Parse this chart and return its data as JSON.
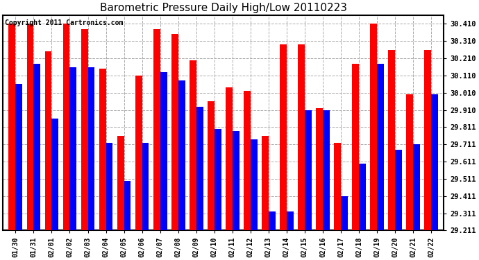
{
  "title": "Barometric Pressure Daily High/Low 20110223",
  "copyright_text": "Copyright 2011 Cartronics.com",
  "dates": [
    "01/30",
    "01/31",
    "02/01",
    "02/02",
    "02/03",
    "02/04",
    "02/05",
    "02/06",
    "02/07",
    "02/08",
    "02/09",
    "02/10",
    "02/11",
    "02/12",
    "02/13",
    "02/14",
    "02/15",
    "02/16",
    "02/17",
    "02/18",
    "02/19",
    "02/20",
    "02/21",
    "02/22"
  ],
  "highs": [
    30.41,
    30.41,
    30.25,
    30.41,
    30.38,
    30.15,
    29.76,
    30.11,
    30.38,
    30.35,
    30.2,
    29.96,
    30.04,
    30.02,
    29.76,
    30.29,
    30.29,
    29.92,
    29.72,
    30.18,
    30.41,
    30.26,
    30.0,
    30.26
  ],
  "lows": [
    30.06,
    30.18,
    29.86,
    30.16,
    30.16,
    29.72,
    29.5,
    29.72,
    30.13,
    30.08,
    29.93,
    29.8,
    29.79,
    29.74,
    29.32,
    29.32,
    29.91,
    29.91,
    29.41,
    29.6,
    30.18,
    29.68,
    29.71,
    30.0
  ],
  "high_color": "#ff0000",
  "low_color": "#0000ff",
  "background_color": "#ffffff",
  "plot_bg_color": "#ffffff",
  "ylim_min": 29.211,
  "ylim_max": 30.461,
  "yticks": [
    29.211,
    29.311,
    29.411,
    29.511,
    29.611,
    29.711,
    29.811,
    29.91,
    30.01,
    30.11,
    30.21,
    30.31,
    30.41
  ],
  "ytick_labels": [
    "29.211",
    "29.311",
    "29.411",
    "29.511",
    "29.611",
    "29.711",
    "29.811",
    "29.910",
    "30.010",
    "30.110",
    "30.210",
    "30.310",
    "30.410"
  ],
  "grid_color": "#aaaaaa",
  "title_fontsize": 11,
  "copyright_fontsize": 7,
  "bar_width": 0.38
}
